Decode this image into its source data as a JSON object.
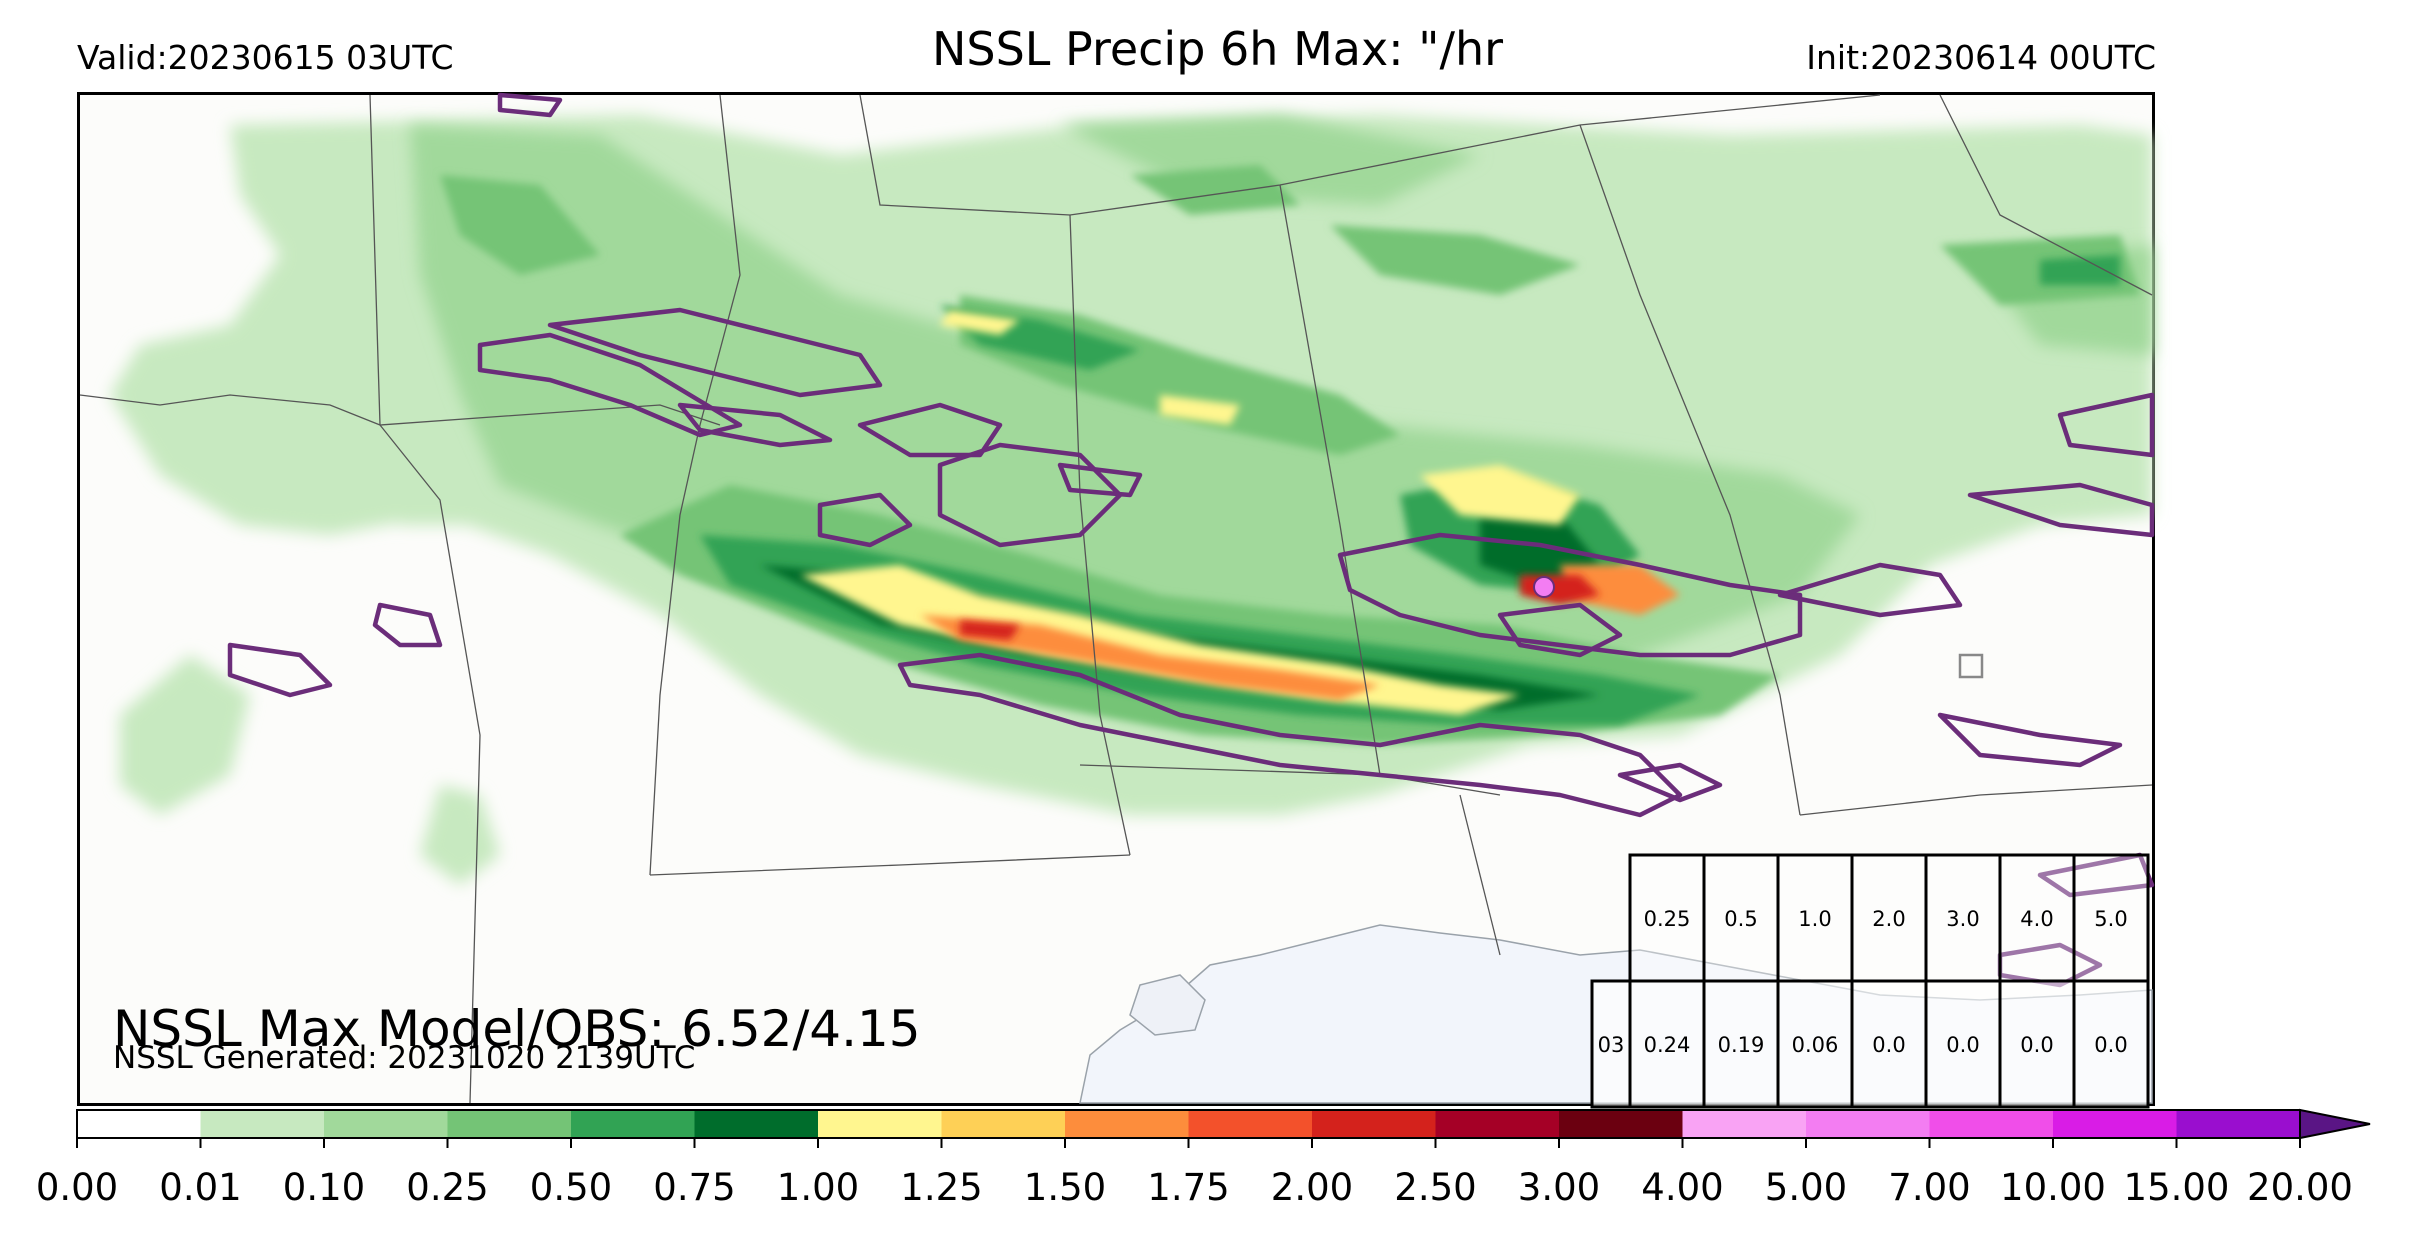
{
  "header": {
    "valid": "Valid:20230615 03UTC",
    "title": "NSSL Precip 6h Max: \"/hr",
    "init": "Init:20230614 00UTC"
  },
  "footnotes": {
    "max_model_obs": "NSSL Max Model/OBS: 6.52/4.15",
    "generated": "NSSL Generated: 20231020 2139UTC"
  },
  "stats_table": {
    "thresholds": [
      "0.25",
      "0.5",
      "1.0",
      "2.0",
      "3.0",
      "4.0",
      "5.0"
    ],
    "row_label": "03",
    "values": [
      "0.24",
      "0.19",
      "0.06",
      "0.0",
      "0.0",
      "0.0",
      "0.0"
    ]
  },
  "colorbar": {
    "ticks": [
      "0.00",
      "0.01",
      "0.10",
      "0.25",
      "0.50",
      "0.75",
      "1.00",
      "1.25",
      "1.50",
      "1.75",
      "2.00",
      "2.50",
      "3.00",
      "4.00",
      "5.00",
      "7.00",
      "10.00",
      "15.00",
      "20.00"
    ],
    "colors": [
      "#ffffff",
      "#c7e9c0",
      "#a1d99b",
      "#74c476",
      "#31a354",
      "#006d2c",
      "#fff68f",
      "#fed056",
      "#fd8d3c",
      "#f3512b",
      "#d4221c",
      "#a50026",
      "#6b0010",
      "#f9a3f4",
      "#f37df2",
      "#f04ee9",
      "#d91ce6",
      "#9a0ecf"
    ],
    "extend_color": "#5a1585"
  },
  "colors": {
    "obs_contour": "#6b2d7a",
    "water": "#f2f5fb",
    "land": "#fcfcfa",
    "border": "#555555"
  }
}
